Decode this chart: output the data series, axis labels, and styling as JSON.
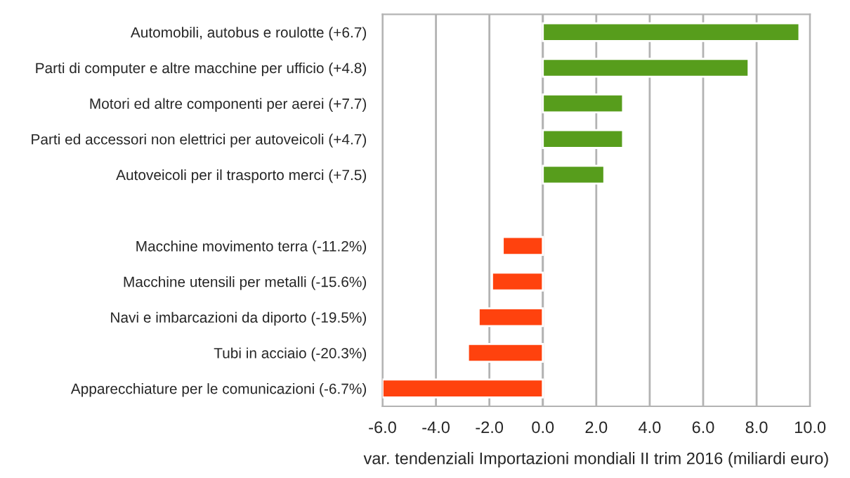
{
  "chart_data": {
    "type": "bar",
    "orientation": "horizontal",
    "xlabel": "var. tendenziali Importazioni mondiali II trim 2016 (miliardi euro)",
    "categories": [
      "Automobili, autobus e roulotte (+6.7)",
      "Parti di computer e altre macchine per ufficio (+4.8)",
      "Motori ed altre componenti per aerei (+7.7)",
      "Parti ed accessori non elettrici per autoveicoli (+4.7)",
      "Autoveicoli per il trasporto merci (+7.5)",
      null,
      "Macchine movimento terra (-11.2%)",
      "Macchine utensili per metalli (-15.6%)",
      "Navi e imbarcazioni da diporto (-19.5%)",
      "Tubi in acciaio (-20.3%)",
      "Apparecchiature per le comunicazioni (-6.7%)"
    ],
    "values": [
      9.6,
      7.7,
      3.0,
      3.0,
      2.3,
      null,
      -1.5,
      -1.9,
      -2.4,
      -2.8,
      -6.0
    ],
    "colors": [
      "#579d1c",
      "#579d1c",
      "#579d1c",
      "#579d1c",
      "#579d1c",
      "#579d1c",
      "#ff420e",
      "#ff420e",
      "#ff420e",
      "#ff420e",
      "#ff420e"
    ],
    "xlim": [
      -6,
      10
    ],
    "xticks": [
      {
        "value": -6,
        "label": "-6.0"
      },
      {
        "value": -4,
        "label": "-4.0"
      },
      {
        "value": -2,
        "label": "-2.0"
      },
      {
        "value": 0,
        "label": "0.0"
      },
      {
        "value": 2,
        "label": "2.0"
      },
      {
        "value": 4,
        "label": "4.0"
      },
      {
        "value": 6,
        "label": "6.0"
      },
      {
        "value": 8,
        "label": "8.0"
      },
      {
        "value": 10,
        "label": "10.0"
      }
    ],
    "grid": "x",
    "legend": false
  }
}
